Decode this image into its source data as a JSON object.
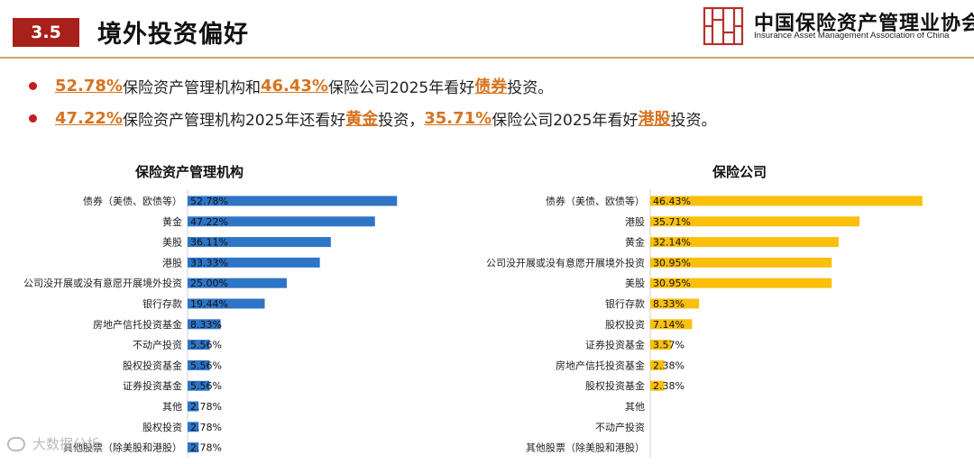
{
  "header": {
    "section_number": "3.5",
    "title": "境外投资偏好"
  },
  "logo": {
    "cn": "中国保险资产管理业协会",
    "en": "Insurance Asset Management Association of China",
    "mark_color": "#b5312a"
  },
  "bullets": [
    {
      "v1": "52.78%",
      "t1": "保险资产管理机构和",
      "v2": "46.43%",
      "t2": "保险公司2025年看好",
      "v3": "债券",
      "t3": "投资。"
    },
    {
      "v1": "47.22%",
      "t1": "保险资产管理机构2025年还看好",
      "v2": "黄金",
      "t2": "投资，",
      "v3": "35.71%",
      "t3": "保险公司2025年看好",
      "v4": "港股",
      "t4": "投资。"
    }
  ],
  "colors": {
    "left_bar": "#2e75c6",
    "right_bar": "#fbbf0c",
    "accent": "#d6731e",
    "header_bg": "#a8201a"
  },
  "chart_data": [
    {
      "type": "bar",
      "orientation": "horizontal",
      "title": "保险资产管理机构",
      "categories": [
        "债券（美债、欧债等）",
        "黄金",
        "美股",
        "港股",
        "公司没开展或没有意愿开展境外投资",
        "银行存款",
        "房地产信托投资基金",
        "不动产投资",
        "股权投资基金",
        "证券投资基金",
        "其他",
        "股权投资",
        "其他股票（除美股和港股）"
      ],
      "values": [
        52.78,
        47.22,
        36.11,
        33.33,
        25.0,
        19.44,
        8.33,
        5.56,
        5.56,
        5.56,
        2.78,
        2.78,
        2.78
      ],
      "labels": [
        "52.78%",
        "47.22%",
        "36.11%",
        "33.33%",
        "25.00%",
        "19.44%",
        "8.33%",
        "5.56%",
        "5.56%",
        "5.56%",
        "2.78%",
        "2.78%",
        "2.78%"
      ],
      "xlim": [
        0,
        60
      ]
    },
    {
      "type": "bar",
      "orientation": "horizontal",
      "title": "保险公司",
      "categories": [
        "债券（美债、欧债等）",
        "港股",
        "黄金",
        "公司没开展或没有意愿开展境外投资",
        "美股",
        "银行存款",
        "股权投资",
        "证券投资基金",
        "房地产信托投资基金",
        "股权投资基金",
        "其他",
        "不动产投资",
        "其他股票（除美股和港股）"
      ],
      "values": [
        46.43,
        35.71,
        32.14,
        30.95,
        30.95,
        8.33,
        7.14,
        3.57,
        2.38,
        2.38,
        0,
        0,
        0
      ],
      "labels": [
        "46.43%",
        "35.71%",
        "32.14%",
        "30.95%",
        "30.95%",
        "8.33%",
        "7.14%",
        "3.57%",
        "2.38%",
        "2.38%",
        "",
        "",
        ""
      ],
      "xlim": [
        0,
        60
      ]
    }
  ],
  "watermark": "大数据分析"
}
